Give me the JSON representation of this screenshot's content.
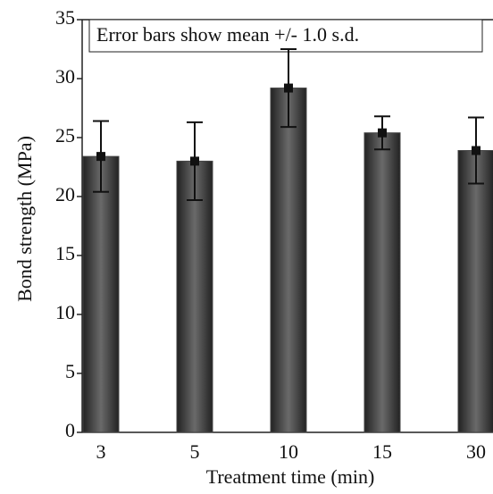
{
  "chart_data": {
    "type": "bar",
    "annotation": "Error bars show mean +/- 1.0 s.d.",
    "x_label": "Treatment time (min)",
    "y_label": "Bond strength (MPa)",
    "categories": [
      "3",
      "5",
      "10",
      "15",
      "30"
    ],
    "values": [
      23.4,
      23.0,
      29.2,
      25.4,
      23.9
    ],
    "errors": [
      3.0,
      3.3,
      3.3,
      1.4,
      2.8
    ],
    "color": "#444444",
    "ylim": [
      0,
      35
    ],
    "yticks": [
      0,
      5,
      10,
      15,
      20,
      25,
      30,
      35
    ],
    "grid": false
  }
}
